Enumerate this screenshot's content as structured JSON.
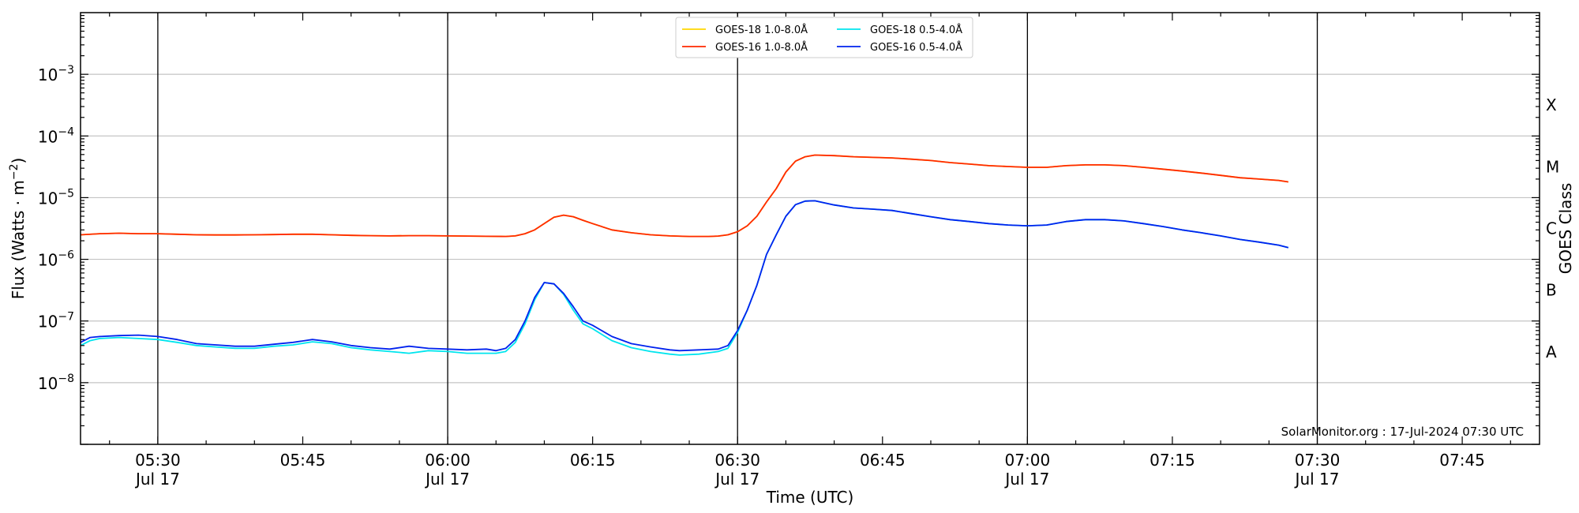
{
  "chart_data": {
    "type": "line",
    "xlabel": "Time (UTC)",
    "ylabel": "Flux (Watts · m",
    "ylabel_sup": "−2",
    "ylabel_close": ")",
    "right_label": "GOES Class",
    "xlim": [
      "05:22",
      "07:53"
    ],
    "ylim": [
      1e-09,
      0.01
    ],
    "yscale": "log",
    "grid": "horizontal",
    "legend_position": "top-center",
    "watermark": "SolarMonitor.org : 17-Jul-2024 07:30 UTC",
    "x_ticks": [
      {
        "t": "05:30",
        "top": "05:30",
        "bottom": "Jul 17"
      },
      {
        "t": "05:45",
        "top": "05:45",
        "bottom": ""
      },
      {
        "t": "06:00",
        "top": "06:00",
        "bottom": "Jul 17"
      },
      {
        "t": "06:15",
        "top": "06:15",
        "bottom": ""
      },
      {
        "t": "06:30",
        "top": "06:30",
        "bottom": "Jul 17"
      },
      {
        "t": "06:45",
        "top": "06:45",
        "bottom": ""
      },
      {
        "t": "07:00",
        "top": "07:00",
        "bottom": "Jul 17"
      },
      {
        "t": "07:15",
        "top": "07:15",
        "bottom": ""
      },
      {
        "t": "07:30",
        "top": "07:30",
        "bottom": "Jul 17"
      },
      {
        "t": "07:45",
        "top": "07:45",
        "bottom": ""
      }
    ],
    "vlines": [
      "05:30",
      "06:00",
      "06:30",
      "07:00",
      "07:30"
    ],
    "y_ticks": [
      {
        "value": 1e-08,
        "base": "10",
        "exp": "−8"
      },
      {
        "value": 1e-07,
        "base": "10",
        "exp": "−7"
      },
      {
        "value": 1e-06,
        "base": "10",
        "exp": "−6"
      },
      {
        "value": 1e-05,
        "base": "10",
        "exp": "−5"
      },
      {
        "value": 0.0001,
        "base": "10",
        "exp": "−4"
      },
      {
        "value": 0.001,
        "base": "10",
        "exp": "−3"
      }
    ],
    "goes_classes": [
      {
        "label": "A",
        "value": 3.16e-08
      },
      {
        "label": "B",
        "value": 3.16e-07
      },
      {
        "label": "C",
        "value": 3.16e-06
      },
      {
        "label": "M",
        "value": 3.16e-05
      },
      {
        "label": "X",
        "value": 0.000316
      }
    ],
    "series": [
      {
        "name": "GOES-18 1.0-8.0Å",
        "color": "#ffd700",
        "x": [
          "05:22",
          "05:24",
          "05:26",
          "05:28",
          "05:30",
          "05:32",
          "05:34",
          "05:36",
          "05:38",
          "05:40",
          "05:42",
          "05:44",
          "05:46",
          "05:48",
          "05:50",
          "05:52",
          "05:54",
          "05:56",
          "05:58",
          "06:00",
          "06:02",
          "06:04",
          "06:06",
          "06:07",
          "06:08",
          "06:09",
          "06:10",
          "06:11",
          "06:12",
          "06:13",
          "06:14",
          "06:15",
          "06:17",
          "06:19",
          "06:21",
          "06:23",
          "06:25",
          "06:27",
          "06:28",
          "06:29",
          "06:30",
          "06:31",
          "06:32",
          "06:33",
          "06:34",
          "06:35",
          "06:36",
          "06:37",
          "06:38",
          "06:40",
          "06:42",
          "06:44",
          "06:46",
          "06:48",
          "06:50",
          "06:52",
          "06:54",
          "06:56",
          "06:58",
          "07:00",
          "07:02",
          "07:04",
          "07:06",
          "07:08",
          "07:10",
          "07:12",
          "07:14",
          "07:16",
          "07:18",
          "07:20",
          "07:22",
          "07:24",
          "07:26",
          "07:27"
        ],
        "values": [
          2.5e-06,
          2.6e-06,
          2.65e-06,
          2.6e-06,
          2.6e-06,
          2.55e-06,
          2.5e-06,
          2.48e-06,
          2.48e-06,
          2.5e-06,
          2.52e-06,
          2.55e-06,
          2.55e-06,
          2.5e-06,
          2.45e-06,
          2.42e-06,
          2.4e-06,
          2.42e-06,
          2.42e-06,
          2.4e-06,
          2.38e-06,
          2.36e-06,
          2.35e-06,
          2.4e-06,
          2.6e-06,
          3e-06,
          3.8e-06,
          4.8e-06,
          5.2e-06,
          4.9e-06,
          4.3e-06,
          3.8e-06,
          3e-06,
          2.7e-06,
          2.5e-06,
          2.4e-06,
          2.35e-06,
          2.35e-06,
          2.38e-06,
          2.5e-06,
          2.8e-06,
          3.5e-06,
          5e-06,
          8.5e-06,
          1.4e-05,
          2.6e-05,
          3.9e-05,
          4.6e-05,
          4.9e-05,
          4.8e-05,
          4.6e-05,
          4.5e-05,
          4.4e-05,
          4.2e-05,
          4e-05,
          3.7e-05,
          3.5e-05,
          3.3e-05,
          3.2e-05,
          3.1e-05,
          3.1e-05,
          3.3e-05,
          3.4e-05,
          3.4e-05,
          3.3e-05,
          3.1e-05,
          2.9e-05,
          2.7e-05,
          2.5e-05,
          2.3e-05,
          2.1e-05,
          2e-05,
          1.9e-05,
          1.8e-05
        ]
      },
      {
        "name": "GOES-16 1.0-8.0Å",
        "color": "#ff2a00",
        "x": [
          "05:22",
          "05:24",
          "05:26",
          "05:28",
          "05:30",
          "05:32",
          "05:34",
          "05:36",
          "05:38",
          "05:40",
          "05:42",
          "05:44",
          "05:46",
          "05:48",
          "05:50",
          "05:52",
          "05:54",
          "05:56",
          "05:58",
          "06:00",
          "06:02",
          "06:04",
          "06:06",
          "06:07",
          "06:08",
          "06:09",
          "06:10",
          "06:11",
          "06:12",
          "06:13",
          "06:14",
          "06:15",
          "06:17",
          "06:19",
          "06:21",
          "06:23",
          "06:25",
          "06:27",
          "06:28",
          "06:29",
          "06:30",
          "06:31",
          "06:32",
          "06:33",
          "06:34",
          "06:35",
          "06:36",
          "06:37",
          "06:38",
          "06:40",
          "06:42",
          "06:44",
          "06:46",
          "06:48",
          "06:50",
          "06:52",
          "06:54",
          "06:56",
          "06:58",
          "07:00",
          "07:02",
          "07:04",
          "07:06",
          "07:08",
          "07:10",
          "07:12",
          "07:14",
          "07:16",
          "07:18",
          "07:20",
          "07:22",
          "07:24",
          "07:26",
          "07:27"
        ],
        "values": [
          2.5e-06,
          2.6e-06,
          2.65e-06,
          2.6e-06,
          2.6e-06,
          2.55e-06,
          2.5e-06,
          2.48e-06,
          2.48e-06,
          2.5e-06,
          2.52e-06,
          2.55e-06,
          2.55e-06,
          2.5e-06,
          2.45e-06,
          2.42e-06,
          2.4e-06,
          2.42e-06,
          2.42e-06,
          2.4e-06,
          2.38e-06,
          2.36e-06,
          2.35e-06,
          2.4e-06,
          2.6e-06,
          3e-06,
          3.8e-06,
          4.8e-06,
          5.2e-06,
          4.9e-06,
          4.3e-06,
          3.8e-06,
          3e-06,
          2.7e-06,
          2.5e-06,
          2.4e-06,
          2.35e-06,
          2.35e-06,
          2.38e-06,
          2.5e-06,
          2.8e-06,
          3.5e-06,
          5e-06,
          8.5e-06,
          1.4e-05,
          2.6e-05,
          3.9e-05,
          4.6e-05,
          4.9e-05,
          4.8e-05,
          4.6e-05,
          4.5e-05,
          4.4e-05,
          4.2e-05,
          4e-05,
          3.7e-05,
          3.5e-05,
          3.3e-05,
          3.2e-05,
          3.1e-05,
          3.1e-05,
          3.3e-05,
          3.4e-05,
          3.4e-05,
          3.3e-05,
          3.1e-05,
          2.9e-05,
          2.7e-05,
          2.5e-05,
          2.3e-05,
          2.1e-05,
          2e-05,
          1.9e-05,
          1.8e-05
        ]
      },
      {
        "name": "GOES-18 0.5-4.0Å",
        "color": "#00e5ee",
        "x": [
          "05:22",
          "05:23",
          "05:24",
          "05:26",
          "05:28",
          "05:30",
          "05:32",
          "05:34",
          "05:36",
          "05:38",
          "05:40",
          "05:42",
          "05:44",
          "05:46",
          "05:48",
          "05:50",
          "05:52",
          "05:54",
          "05:56",
          "05:58",
          "06:00",
          "06:02",
          "06:04",
          "06:05",
          "06:06",
          "06:07",
          "06:08",
          "06:09",
          "06:10",
          "06:11",
          "06:12",
          "06:13",
          "06:14",
          "06:15",
          "06:17",
          "06:19",
          "06:21",
          "06:23",
          "06:24",
          "06:26",
          "06:28",
          "06:29",
          "06:30",
          "06:31",
          "06:32",
          "06:33",
          "06:34",
          "06:35",
          "06:36",
          "06:37",
          "06:38",
          "06:40",
          "06:42",
          "06:44",
          "06:46",
          "06:48",
          "06:50",
          "06:52",
          "06:54",
          "06:56",
          "06:58",
          "07:00",
          "07:02",
          "07:04",
          "07:06",
          "07:08",
          "07:10",
          "07:12",
          "07:14",
          "07:16",
          "07:18",
          "07:20",
          "07:22",
          "07:24",
          "07:26",
          "07:27"
        ],
        "values": [
          4e-08,
          4.8e-08,
          5.2e-08,
          5.4e-08,
          5.2e-08,
          5e-08,
          4.5e-08,
          4e-08,
          3.8e-08,
          3.6e-08,
          3.6e-08,
          3.9e-08,
          4.1e-08,
          4.6e-08,
          4.3e-08,
          3.7e-08,
          3.4e-08,
          3.2e-08,
          3e-08,
          3.3e-08,
          3.2e-08,
          3e-08,
          3e-08,
          3e-08,
          3.2e-08,
          4.5e-08,
          9e-08,
          2.2e-07,
          4.2e-07,
          4e-07,
          2.7e-07,
          1.5e-07,
          9e-08,
          7.5e-08,
          4.8e-08,
          3.7e-08,
          3.2e-08,
          2.9e-08,
          2.8e-08,
          2.9e-08,
          3.2e-08,
          3.6e-08,
          6.5e-08,
          1.5e-07,
          3.8e-07,
          1.2e-06,
          2.5e-06,
          5e-06,
          7.7e-06,
          8.8e-06,
          8.9e-06,
          7.6e-06,
          6.8e-06,
          6.5e-06,
          6.2e-06,
          5.5e-06,
          4.9e-06,
          4.4e-06,
          4.1e-06,
          3.8e-06,
          3.6e-06,
          3.5e-06,
          3.6e-06,
          4.1e-06,
          4.4e-06,
          4.4e-06,
          4.2e-06,
          3.8e-06,
          3.4e-06,
          3e-06,
          2.7e-06,
          2.4e-06,
          2.1e-06,
          1.9e-06,
          1.7e-06,
          1.55e-06
        ]
      },
      {
        "name": "GOES-16 0.5-4.0Å",
        "color": "#0022ee",
        "x": [
          "05:22",
          "05:23",
          "05:24",
          "05:26",
          "05:28",
          "05:30",
          "05:32",
          "05:34",
          "05:36",
          "05:38",
          "05:40",
          "05:42",
          "05:44",
          "05:46",
          "05:48",
          "05:50",
          "05:52",
          "05:54",
          "05:56",
          "05:58",
          "06:00",
          "06:02",
          "06:04",
          "06:05",
          "06:06",
          "06:07",
          "06:08",
          "06:09",
          "06:10",
          "06:11",
          "06:12",
          "06:13",
          "06:14",
          "06:15",
          "06:17",
          "06:19",
          "06:21",
          "06:23",
          "06:24",
          "06:26",
          "06:28",
          "06:29",
          "06:30",
          "06:31",
          "06:32",
          "06:33",
          "06:34",
          "06:35",
          "06:36",
          "06:37",
          "06:38",
          "06:40",
          "06:42",
          "06:44",
          "06:46",
          "06:48",
          "06:50",
          "06:52",
          "06:54",
          "06:56",
          "06:58",
          "07:00",
          "07:02",
          "07:04",
          "07:06",
          "07:08",
          "07:10",
          "07:12",
          "07:14",
          "07:16",
          "07:18",
          "07:20",
          "07:22",
          "07:24",
          "07:26",
          "07:27"
        ],
        "values": [
          4.5e-08,
          5.4e-08,
          5.6e-08,
          5.8e-08,
          5.9e-08,
          5.6e-08,
          5e-08,
          4.3e-08,
          4.1e-08,
          3.9e-08,
          3.9e-08,
          4.2e-08,
          4.5e-08,
          5e-08,
          4.6e-08,
          4e-08,
          3.7e-08,
          3.5e-08,
          3.9e-08,
          3.6e-08,
          3.5e-08,
          3.4e-08,
          3.5e-08,
          3.3e-08,
          3.6e-08,
          5e-08,
          1e-07,
          2.4e-07,
          4.2e-07,
          4e-07,
          2.8e-07,
          1.7e-07,
          1e-07,
          8.5e-08,
          5.6e-08,
          4.3e-08,
          3.8e-08,
          3.4e-08,
          3.3e-08,
          3.4e-08,
          3.5e-08,
          4e-08,
          7e-08,
          1.5e-07,
          3.8e-07,
          1.2e-06,
          2.5e-06,
          5e-06,
          7.7e-06,
          8.8e-06,
          8.9e-06,
          7.6e-06,
          6.8e-06,
          6.5e-06,
          6.2e-06,
          5.5e-06,
          4.9e-06,
          4.4e-06,
          4.1e-06,
          3.8e-06,
          3.6e-06,
          3.5e-06,
          3.6e-06,
          4.1e-06,
          4.4e-06,
          4.4e-06,
          4.2e-06,
          3.8e-06,
          3.4e-06,
          3e-06,
          2.7e-06,
          2.4e-06,
          2.1e-06,
          1.9e-06,
          1.7e-06,
          1.55e-06
        ]
      }
    ]
  }
}
